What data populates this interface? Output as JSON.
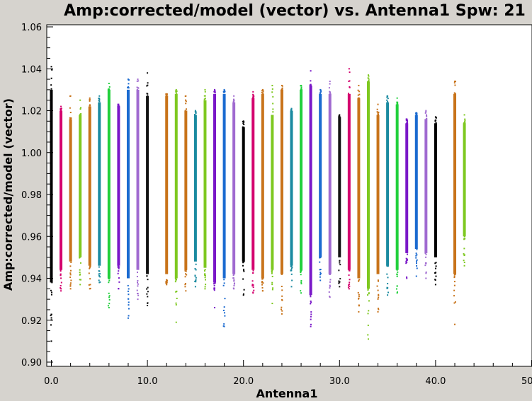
{
  "chart_data": {
    "type": "scatter",
    "title": "Amp:corrected/model (vector) vs. Antenna1 Spw: 21",
    "xlabel": "Antenna1",
    "ylabel": "Amp:corrected/model (vector)",
    "xlim": [
      0.0,
      50.0
    ],
    "ylim": [
      0.9,
      1.06
    ],
    "xticks": [
      "0.0",
      "10.0",
      "20.0",
      "30.0",
      "40.0",
      "50.0"
    ],
    "yticks": [
      "0.90",
      "0.92",
      "0.94",
      "0.96",
      "0.98",
      "1.00",
      "1.02",
      "1.04",
      "1.06"
    ],
    "grid": false,
    "points_per_column_note": "each antenna column is a dense vertical band of points",
    "series": [
      {
        "x": 0,
        "min": 0.91,
        "max": 1.041,
        "core": [
          0.938,
          1.03
        ],
        "color": "#000000"
      },
      {
        "x": 1,
        "min": 0.934,
        "max": 1.022,
        "core": [
          0.944,
          1.02
        ],
        "color": "#d4006e"
      },
      {
        "x": 2,
        "min": 0.935,
        "max": 1.027,
        "core": [
          0.948,
          1.016
        ],
        "color": "#c8731a"
      },
      {
        "x": 3,
        "min": 0.937,
        "max": 1.025,
        "core": [
          0.95,
          1.018
        ],
        "color": "#7ec820"
      },
      {
        "x": 4,
        "min": 0.935,
        "max": 1.026,
        "core": [
          0.946,
          1.022
        ],
        "color": "#c8731a"
      },
      {
        "x": 5,
        "min": 0.938,
        "max": 1.027,
        "core": [
          0.946,
          1.024
        ],
        "color": "#1a8aa0"
      },
      {
        "x": 6,
        "min": 0.926,
        "max": 1.033,
        "core": [
          0.94,
          1.03
        ],
        "color": "#22d03c"
      },
      {
        "x": 7,
        "min": 0.935,
        "max": 1.023,
        "core": [
          0.946,
          1.022
        ],
        "color": "#7a18c8"
      },
      {
        "x": 8,
        "min": 0.921,
        "max": 1.035,
        "core": [
          0.94,
          1.03
        ],
        "color": "#1a6ad0"
      },
      {
        "x": 9,
        "min": 0.93,
        "max": 1.035,
        "core": [
          0.944,
          1.03
        ],
        "color": "#a06ad0"
      },
      {
        "x": 10,
        "min": 0.927,
        "max": 1.038,
        "core": [
          0.942,
          1.027
        ],
        "color": "#111111"
      },
      {
        "x": 12,
        "min": 0.937,
        "max": 1.028,
        "core": [
          0.942,
          1.027
        ],
        "color": "#c8731a"
      },
      {
        "x": 13,
        "min": 0.919,
        "max": 1.03,
        "core": [
          0.94,
          1.028
        ],
        "color": "#7ec820"
      },
      {
        "x": 14,
        "min": 0.934,
        "max": 1.027,
        "core": [
          0.944,
          1.02
        ],
        "color": "#c8731a"
      },
      {
        "x": 15,
        "min": 0.936,
        "max": 1.02,
        "core": [
          0.948,
          1.018
        ],
        "color": "#1a8aa0"
      },
      {
        "x": 16,
        "min": 0.935,
        "max": 1.03,
        "core": [
          0.945,
          1.025
        ],
        "color": "#7ec820"
      },
      {
        "x": 17,
        "min": 0.926,
        "max": 1.03,
        "core": [
          0.938,
          1.028
        ],
        "color": "#7a18c8"
      },
      {
        "x": 18,
        "min": 0.917,
        "max": 1.03,
        "core": [
          0.94,
          1.028
        ],
        "color": "#1a6ad0"
      },
      {
        "x": 19,
        "min": 0.935,
        "max": 1.027,
        "core": [
          0.942,
          1.024
        ],
        "color": "#a06ad0"
      },
      {
        "x": 20,
        "min": 0.932,
        "max": 1.015,
        "core": [
          0.948,
          1.012
        ],
        "color": "#000000"
      },
      {
        "x": 21,
        "min": 0.933,
        "max": 1.029,
        "core": [
          0.944,
          1.026
        ],
        "color": "#d4006e"
      },
      {
        "x": 22,
        "min": 0.934,
        "max": 1.03,
        "core": [
          0.94,
          1.028
        ],
        "color": "#c8731a"
      },
      {
        "x": 23,
        "min": 0.928,
        "max": 1.032,
        "core": [
          0.944,
          1.018
        ],
        "color": "#7ec820"
      },
      {
        "x": 24,
        "min": 0.923,
        "max": 1.032,
        "core": [
          0.942,
          1.03
        ],
        "color": "#c8731a"
      },
      {
        "x": 25,
        "min": 0.936,
        "max": 1.021,
        "core": [
          0.946,
          1.02
        ],
        "color": "#1a8aa0"
      },
      {
        "x": 26,
        "min": 0.933,
        "max": 1.032,
        "core": [
          0.944,
          1.03
        ],
        "color": "#22d03c"
      },
      {
        "x": 27,
        "min": 0.917,
        "max": 1.039,
        "core": [
          0.932,
          1.032
        ],
        "color": "#7a18c8"
      },
      {
        "x": 28,
        "min": 0.939,
        "max": 1.03,
        "core": [
          0.95,
          1.028
        ],
        "color": "#1a6ad0"
      },
      {
        "x": 29,
        "min": 0.931,
        "max": 1.034,
        "core": [
          0.942,
          1.028
        ],
        "color": "#a06ad0"
      },
      {
        "x": 30,
        "min": 0.936,
        "max": 1.018,
        "core": [
          0.95,
          1.017
        ],
        "color": "#111111"
      },
      {
        "x": 31,
        "min": 0.935,
        "max": 1.04,
        "core": [
          0.944,
          1.028
        ],
        "color": "#d4006e"
      },
      {
        "x": 32,
        "min": 0.924,
        "max": 1.032,
        "core": [
          0.94,
          1.026
        ],
        "color": "#c8731a"
      },
      {
        "x": 33,
        "min": 0.911,
        "max": 1.037,
        "core": [
          0.935,
          1.034
        ],
        "color": "#7ec820"
      },
      {
        "x": 34,
        "min": 0.924,
        "max": 1.023,
        "core": [
          0.942,
          1.018
        ],
        "color": "#c8731a"
      },
      {
        "x": 35,
        "min": 0.932,
        "max": 1.027,
        "core": [
          0.946,
          1.024
        ],
        "color": "#1a8aa0"
      },
      {
        "x": 36,
        "min": 0.933,
        "max": 1.026,
        "core": [
          0.944,
          1.023
        ],
        "color": "#22d03c"
      },
      {
        "x": 37,
        "min": 0.94,
        "max": 1.016,
        "core": [
          0.952,
          1.014
        ],
        "color": "#7a18c8"
      },
      {
        "x": 38,
        "min": 0.941,
        "max": 1.019,
        "core": [
          0.954,
          1.018
        ],
        "color": "#1a6ad0"
      },
      {
        "x": 39,
        "min": 0.94,
        "max": 1.02,
        "core": [
          0.952,
          1.016
        ],
        "color": "#a06ad0"
      },
      {
        "x": 40,
        "min": 0.937,
        "max": 1.017,
        "core": [
          0.95,
          1.014
        ],
        "color": "#000000"
      },
      {
        "x": 42,
        "min": 0.918,
        "max": 1.034,
        "core": [
          0.942,
          1.028
        ],
        "color": "#c8731a"
      },
      {
        "x": 43,
        "min": 0.946,
        "max": 1.018,
        "core": [
          0.96,
          1.014
        ],
        "color": "#7ec820"
      }
    ]
  }
}
